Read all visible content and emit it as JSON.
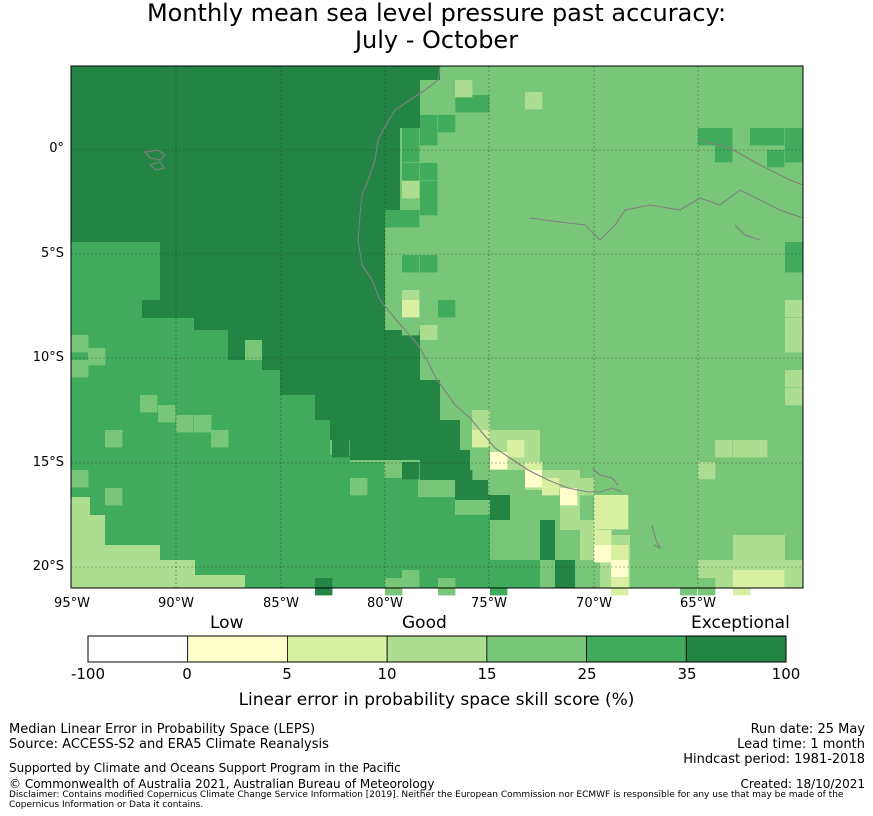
{
  "title": {
    "line1": "Monthly mean sea level pressure past accuracy:",
    "line2": "July - October"
  },
  "map": {
    "lat_labels": [
      "0°",
      "5°S",
      "10°S",
      "15°S",
      "20°S"
    ],
    "lon_labels": [
      "95°W",
      "90°W",
      "85°W",
      "80°W",
      "75°W",
      "70°W",
      "65°W"
    ],
    "colors": {
      "c0": "#ffffcc",
      "c1": "#d9f0a3",
      "c2": "#addd8e",
      "c3": "#78c679",
      "c4": "#41ab5d",
      "c5": "#238443",
      "coast": "#808080",
      "grid": "#333333"
    }
  },
  "colorbar": {
    "categories": [
      "Low",
      "Good",
      "Exceptional"
    ],
    "ticks": [
      "-100",
      "0",
      "5",
      "10",
      "15",
      "25",
      "35",
      "100"
    ],
    "colors": [
      "#ffffff",
      "#ffffcc",
      "#d9f0a3",
      "#addd8e",
      "#78c679",
      "#41ab5d",
      "#238443"
    ],
    "caption": "Linear error in probability space skill score (%)"
  },
  "footer": {
    "left": [
      "Median Linear Error in Probability Space (LEPS)",
      "Source: ACCESS-S2 and ERA5 Climate Reanalysis"
    ],
    "right": [
      "Run date: 25 May",
      "Lead time: 1 month",
      "Hindcast period: 1981-2018"
    ],
    "supported": "Supported by Climate and Oceans Support Program in the Pacific",
    "copyright": "© Commonwealth of Australia 2021, Australian Bureau of Meteorology",
    "created": "Created: 18/10/2021",
    "disclaimer": "Disclaimer: Contains modified Copernicus Climate Change Service Information [2019]. Neither the European Commission nor ECMWF is responsible for any use that may be made of the Copernicus Information or Data it contains."
  }
}
